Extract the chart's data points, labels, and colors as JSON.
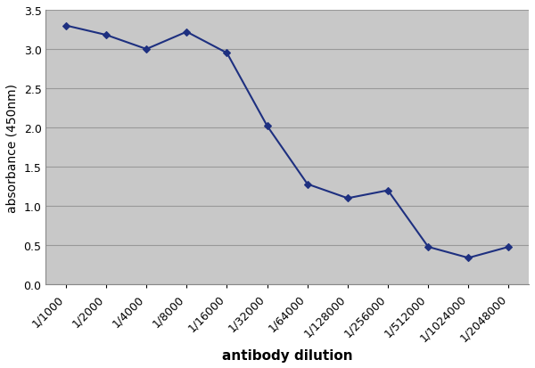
{
  "x_labels": [
    "1/1000",
    "1/2000",
    "1/4000",
    "1/8000",
    "1/16000",
    "1/32000",
    "1/64000",
    "1/128000",
    "1/256000",
    "1/512000",
    "1/1024000",
    "1/2048000"
  ],
  "y_values": [
    3.3,
    3.18,
    3.0,
    3.22,
    2.95,
    2.02,
    1.28,
    1.1,
    1.2,
    0.48,
    0.34,
    0.48
  ],
  "line_color": "#1E3080",
  "marker": "D",
  "marker_size": 4,
  "xlabel": "antibody dilution",
  "ylabel": "absorbance (450nm)",
  "ylim": [
    0,
    3.5
  ],
  "yticks": [
    0,
    0.5,
    1.0,
    1.5,
    2.0,
    2.5,
    3.0,
    3.5
  ],
  "plot_bg_color": "#C8C8C8",
  "fig_bg_color": "#FFFFFF",
  "grid_color": "#999999",
  "line_width": 1.5,
  "xlabel_fontsize": 11,
  "ylabel_fontsize": 10,
  "tick_fontsize": 9,
  "xlabel_fontweight": "bold",
  "ylabel_fontweight": "normal"
}
